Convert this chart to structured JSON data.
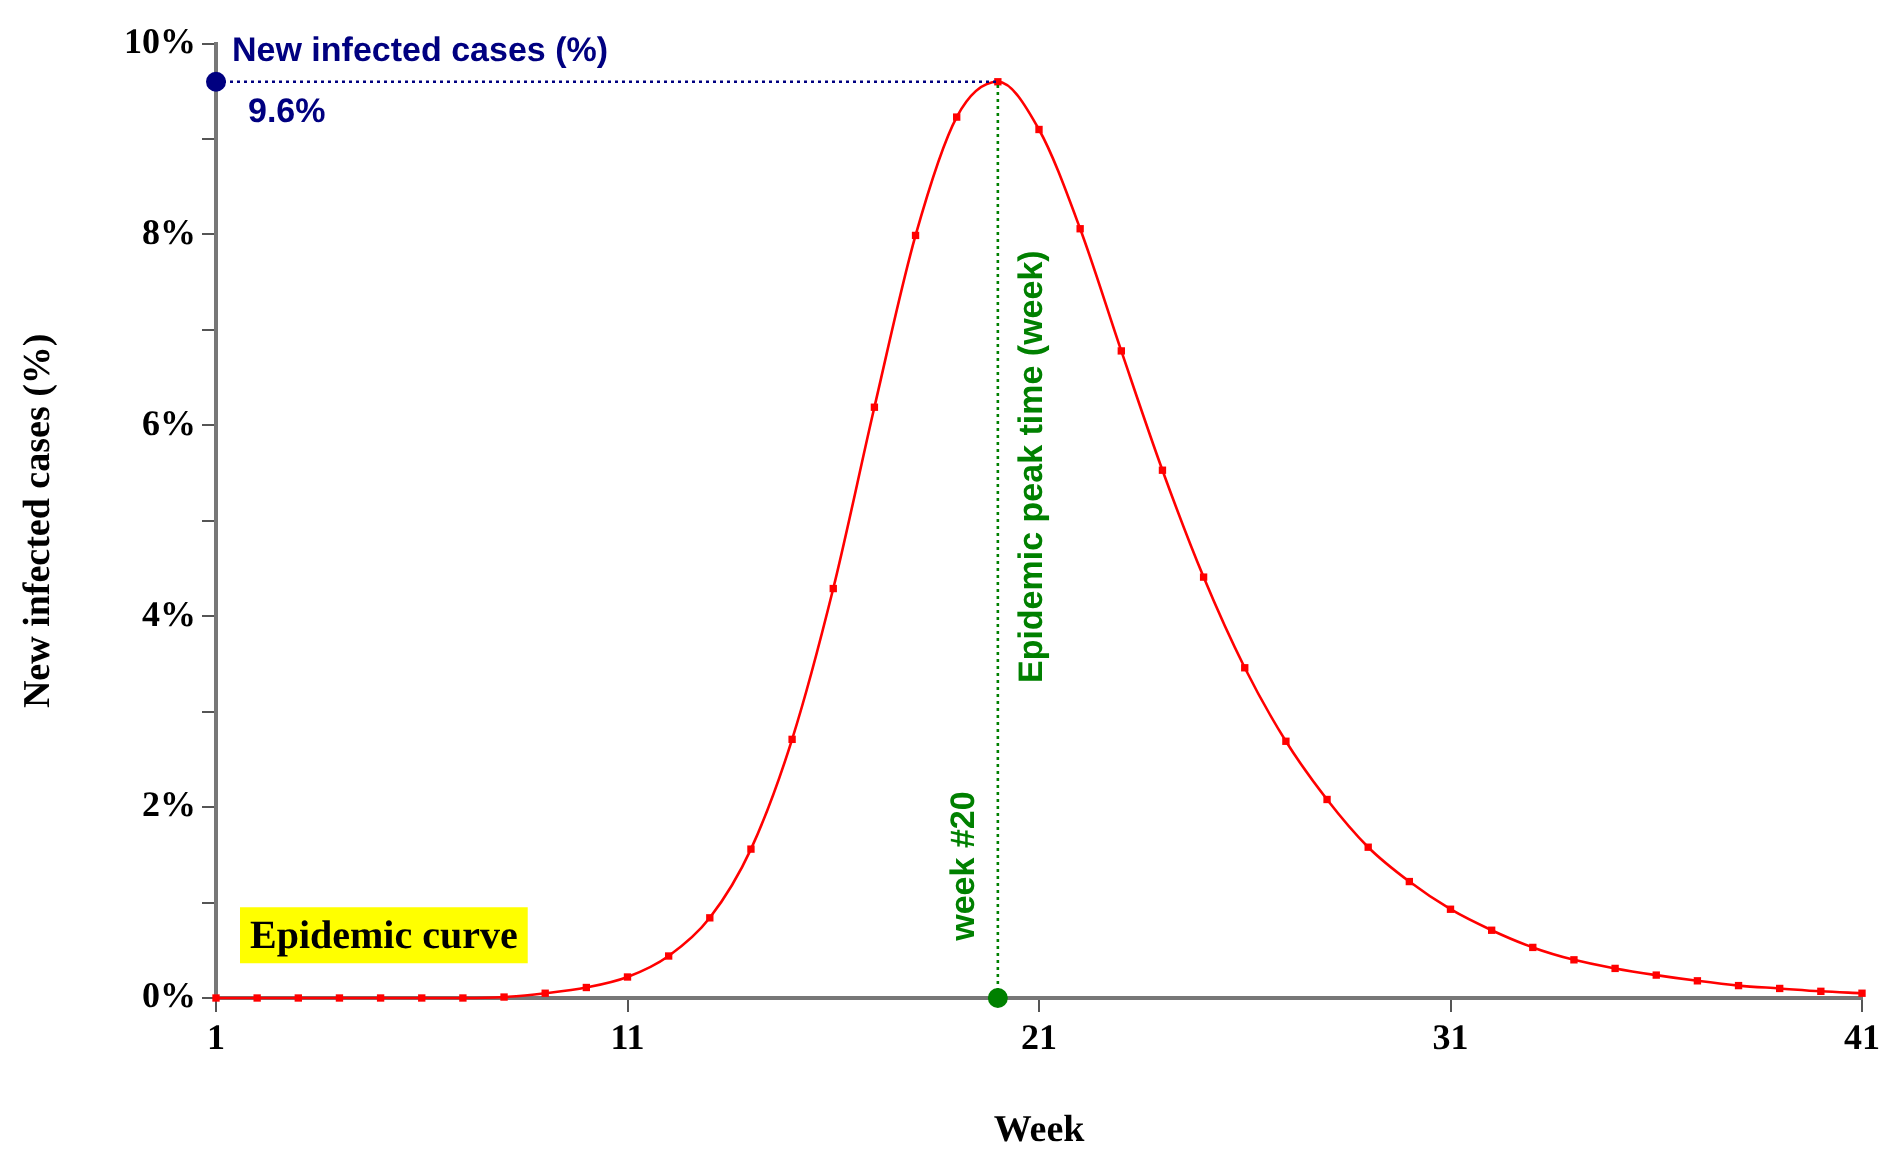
{
  "chart_data": {
    "type": "line",
    "xlabel": "Week",
    "ylabel": "New infected cases (%)",
    "x": [
      1,
      2,
      3,
      4,
      5,
      6,
      7,
      8,
      9,
      10,
      11,
      12,
      13,
      14,
      15,
      16,
      17,
      18,
      19,
      20,
      21,
      22,
      23,
      24,
      25,
      26,
      27,
      28,
      29,
      30,
      31,
      32,
      33,
      34,
      35,
      36,
      37,
      38,
      39,
      40,
      41
    ],
    "series": [
      {
        "color": "#ff0000",
        "values": [
          0,
          0,
          0,
          0,
          0,
          0,
          0,
          0.01,
          0.05,
          0.11,
          0.22,
          0.44,
          0.84,
          1.56,
          2.71,
          4.29,
          6.19,
          7.99,
          9.23,
          9.6,
          9.1,
          8.06,
          6.78,
          5.53,
          4.41,
          3.46,
          2.69,
          2.08,
          1.58,
          1.22,
          0.93,
          0.71,
          0.53,
          0.4,
          0.31,
          0.24,
          0.18,
          0.13,
          0.1,
          0.07,
          0.05
        ]
      },
      {
        "type": "scatter",
        "marker": "circle",
        "color": "#000080",
        "x": [
          1
        ],
        "values": [
          9.6
        ]
      },
      {
        "type": "scatter",
        "marker": "circle",
        "color": "#008000",
        "x": [
          20
        ],
        "values": [
          0
        ]
      }
    ],
    "xlim": [
      1,
      41
    ],
    "xticks": [
      1,
      11,
      21,
      31,
      41
    ],
    "ylim": [
      0,
      10
    ],
    "yticks": [
      {
        "value": 0,
        "label": "0%"
      },
      {
        "value": 1,
        "label": null
      },
      {
        "value": 2,
        "label": "2%"
      },
      {
        "value": 3,
        "label": null
      },
      {
        "value": 4,
        "label": "4%"
      },
      {
        "value": 5,
        "label": null
      },
      {
        "value": 6,
        "label": "6%"
      },
      {
        "value": 7,
        "label": null
      },
      {
        "value": 8,
        "label": "8%"
      },
      {
        "value": 9,
        "label": null
      },
      {
        "value": 10,
        "label": "10%"
      }
    ],
    "ref_lines": [
      {
        "axis": "y",
        "value": 9.6,
        "label": "9.6%",
        "color": "#000080",
        "line_style": "dotted"
      },
      {
        "axis": "x",
        "value": 20,
        "label": "week #20",
        "color": "#008000",
        "line_style": "dotted"
      }
    ],
    "annotations": [
      "New infected cases (%)",
      "Epidemic peak time (week)",
      "Epidemic curve"
    ],
    "marker": "square",
    "line_style": "solid",
    "grid": false,
    "legend": false
  }
}
